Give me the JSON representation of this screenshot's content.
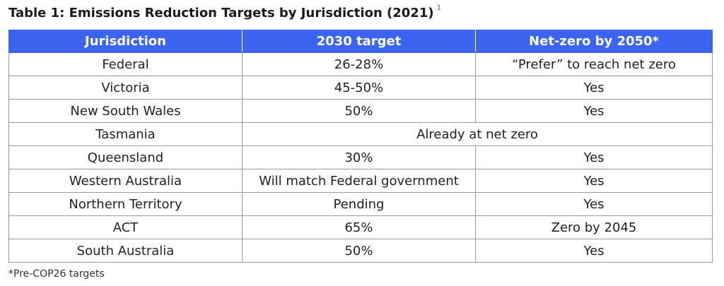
{
  "title": "Table 1: Emissions Reduction Targets by Jurisdiction (2021)",
  "title_ref": "1",
  "colors": {
    "header_bg": "#3b64f1",
    "header_text": "#ffffff",
    "ref_link": "#3b5fd9",
    "border": "#9a9a9a"
  },
  "table": {
    "headers": [
      "Jurisdiction",
      "2030 target",
      "Net-zero by 2050*"
    ],
    "rows": [
      {
        "jurisdiction": "Federal",
        "target_2030": "26-28%",
        "net_zero": "“Prefer” to reach net zero"
      },
      {
        "jurisdiction": "Victoria",
        "target_2030": "45-50%",
        "net_zero": "Yes"
      },
      {
        "jurisdiction": "New South Wales",
        "target_2030": "50%",
        "net_zero": "Yes"
      },
      {
        "jurisdiction": "Tasmania",
        "merged": "Already at net zero"
      },
      {
        "jurisdiction": "Queensland",
        "target_2030": "30%",
        "net_zero": "Yes"
      },
      {
        "jurisdiction": "Western Australia",
        "target_2030": "Will match Federal government",
        "net_zero": "Yes"
      },
      {
        "jurisdiction": "Northern Territory",
        "target_2030": "Pending",
        "net_zero": "Yes"
      },
      {
        "jurisdiction": "ACT",
        "target_2030": "65%",
        "net_zero": "Zero by 2045"
      },
      {
        "jurisdiction": "South Australia",
        "target_2030": "50%",
        "net_zero": "Yes"
      }
    ]
  },
  "footnote": "*Pre-COP26 targets"
}
